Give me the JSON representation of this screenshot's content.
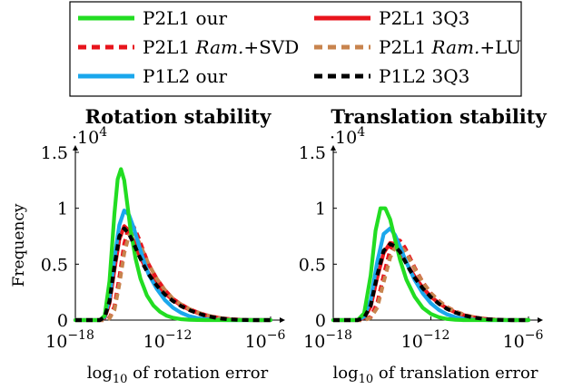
{
  "legend": [
    {
      "name": "P2L1 our",
      "color": "#22dd22",
      "dash": "solid"
    },
    {
      "name": "P2L1 3Q3",
      "color": "#e8141c",
      "dash": "solid"
    },
    {
      "name": "P2L1 Ram.+SVD",
      "color": "#e8141c",
      "dash": "dashed"
    },
    {
      "name": "P2L1 Ram.+LU",
      "color": "#c8844e",
      "dash": "dashed"
    },
    {
      "name": "P1L2 our",
      "color": "#1aa7ec",
      "dash": "solid"
    },
    {
      "name": "P1L2 3Q3",
      "color": "#000000",
      "dash": "dashed"
    }
  ],
  "legend_labels": {
    "l0": "P2L1 our",
    "l1": "P2L1 3Q3",
    "l2_prefix": "P2L1 ",
    "l2_italic": "Ram.",
    "l2_suffix": "+SVD",
    "l3_prefix": "P2L1 ",
    "l3_italic": "Ram.",
    "l3_suffix": "+LU",
    "l4": "P1L2 our",
    "l5": "P1L2 3Q3"
  },
  "chart_data": [
    {
      "type": "line",
      "title": "Rotation stability",
      "xlabel": "log10 of rotation error",
      "xlabel_base": "log",
      "xlabel_sub": "10",
      "xlabel_rest": " of rotation error",
      "ylabel": "Frequency",
      "xlim": [
        -18,
        -6
      ],
      "ylim": [
        0,
        15000
      ],
      "y_multiplier": "·10",
      "y_multiplier_exp": "4",
      "x_ticks": [
        -18,
        -12,
        -6
      ],
      "x_tick_labels": [
        {
          "base": "10",
          "exp": "−18"
        },
        {
          "base": "10",
          "exp": "−12"
        },
        {
          "base": "10",
          "exp": "−6"
        }
      ],
      "y_ticks": [
        0,
        5000,
        10000,
        15000
      ],
      "y_tick_labels": [
        "0",
        "0.5",
        "1",
        "1.5"
      ],
      "series": [
        {
          "name": "P2L1 3Q3",
          "color": "#e8141c",
          "dash": "solid",
          "x": [
            -18.0,
            -16.5,
            -16.2,
            -15.9,
            -15.6,
            -15.3,
            -15.0,
            -14.7,
            -14.4,
            -14.1,
            -13.8,
            -13.5,
            -13.0,
            -12.5,
            -12.0,
            -11.5,
            -11.0,
            -10.5,
            -10.0,
            -9.5,
            -9.0,
            -8.5,
            -8.0,
            -7.5,
            -7.0,
            -6.0
          ],
          "y": [
            0,
            0,
            200,
            1500,
            4500,
            7200,
            8400,
            8000,
            7000,
            5900,
            5000,
            4200,
            3200,
            2400,
            1800,
            1300,
            950,
            650,
            420,
            250,
            140,
            70,
            30,
            10,
            0,
            0
          ]
        },
        {
          "name": "P2L1 Ram.+SVD",
          "color": "#e8141c",
          "dash": "dashed",
          "x": [
            -18.0,
            -16.5,
            -16.2,
            -15.9,
            -15.6,
            -15.3,
            -15.0,
            -14.7,
            -14.4,
            -14.1,
            -13.8,
            -13.5,
            -13.0,
            -12.5,
            -12.0,
            -11.5,
            -11.0,
            -10.5,
            -10.0,
            -9.5,
            -9.0,
            -8.5,
            -8.0,
            -7.5,
            -7.0,
            -6.0
          ],
          "y": [
            0,
            0,
            0,
            200,
            1200,
            3800,
            6800,
            8500,
            8300,
            7300,
            6100,
            5000,
            3700,
            2700,
            1900,
            1400,
            1000,
            700,
            450,
            280,
            160,
            80,
            40,
            15,
            0,
            0
          ]
        },
        {
          "name": "P2L1 Ram.+LU",
          "color": "#c8844e",
          "dash": "dashed",
          "x": [
            -18.0,
            -16.5,
            -16.2,
            -15.9,
            -15.6,
            -15.3,
            -15.0,
            -14.7,
            -14.4,
            -14.1,
            -13.8,
            -13.5,
            -13.0,
            -12.5,
            -12.0,
            -11.5,
            -11.0,
            -10.5,
            -10.0,
            -9.5,
            -9.0,
            -8.5,
            -8.0,
            -7.5,
            -7.0,
            -6.0
          ],
          "y": [
            0,
            0,
            0,
            150,
            900,
            3200,
            6000,
            7600,
            7700,
            7000,
            6000,
            5000,
            3700,
            2700,
            1900,
            1400,
            1000,
            700,
            450,
            280,
            160,
            80,
            40,
            15,
            0,
            0
          ]
        },
        {
          "name": "P1L2 our",
          "color": "#1aa7ec",
          "dash": "solid",
          "x": [
            -18.0,
            -16.5,
            -16.2,
            -15.9,
            -15.6,
            -15.3,
            -15.0,
            -14.7,
            -14.4,
            -14.1,
            -13.8,
            -13.5,
            -13.0,
            -12.5,
            -12.0,
            -11.5,
            -11.0,
            -10.5,
            -10.0,
            -9.5,
            -9.0,
            -8.5,
            -8.0,
            -7.5,
            -7.0,
            -6.0
          ],
          "y": [
            0,
            0,
            300,
            2000,
            5500,
            8500,
            9800,
            9400,
            8200,
            6700,
            5300,
            4100,
            2800,
            1800,
            1100,
            650,
            350,
            180,
            80,
            30,
            10,
            0,
            0,
            0,
            0,
            0
          ]
        },
        {
          "name": "P2L1 our",
          "color": "#22dd22",
          "dash": "solid",
          "x": [
            -18.0,
            -16.5,
            -16.2,
            -15.9,
            -15.6,
            -15.4,
            -15.2,
            -15.0,
            -14.8,
            -14.6,
            -14.3,
            -14.0,
            -13.6,
            -13.2,
            -12.8,
            -12.4,
            -12.0,
            -11.5,
            -11.0,
            -10.5,
            -10.0,
            -9.0,
            -6.0
          ],
          "y": [
            0,
            0,
            400,
            3500,
            9500,
            12600,
            13500,
            12500,
            10300,
            8000,
            5500,
            3700,
            2200,
            1300,
            750,
            400,
            200,
            80,
            30,
            10,
            0,
            0,
            0
          ]
        },
        {
          "name": "P1L2 3Q3",
          "color": "#000000",
          "dash": "dashed",
          "x": [
            -18.0,
            -16.5,
            -16.2,
            -15.9,
            -15.6,
            -15.3,
            -15.0,
            -14.7,
            -14.4,
            -14.1,
            -13.8,
            -13.5,
            -13.0,
            -12.5,
            -12.0,
            -11.5,
            -11.0,
            -10.5,
            -10.0,
            -9.5,
            -9.0,
            -8.5,
            -8.0,
            -7.5,
            -7.0,
            -6.0
          ],
          "y": [
            0,
            0,
            250,
            1700,
            4800,
            7500,
            8200,
            7700,
            6800,
            5800,
            4900,
            4100,
            3100,
            2300,
            1700,
            1250,
            900,
            620,
            400,
            240,
            130,
            65,
            28,
            10,
            0,
            0
          ]
        }
      ]
    },
    {
      "type": "line",
      "title": "Translation stability",
      "xlabel": "log10 of translation error",
      "xlabel_base": "log",
      "xlabel_sub": "10",
      "xlabel_rest": " of translation error",
      "ylabel": "",
      "xlim": [
        -18,
        -6
      ],
      "ylim": [
        0,
        15000
      ],
      "y_multiplier": "·10",
      "y_multiplier_exp": "4",
      "x_ticks": [
        -18,
        -12,
        -6
      ],
      "x_tick_labels": [
        {
          "base": "10",
          "exp": "−18"
        },
        {
          "base": "10",
          "exp": "−12"
        },
        {
          "base": "10",
          "exp": "−6"
        }
      ],
      "y_ticks": [
        0,
        5000,
        10000,
        15000
      ],
      "y_tick_labels": [
        "0",
        "0.5",
        "1",
        "1.5"
      ],
      "series": [
        {
          "name": "P2L1 3Q3",
          "color": "#e8141c",
          "dash": "solid",
          "x": [
            -18.0,
            -16.5,
            -16.1,
            -15.7,
            -15.3,
            -14.9,
            -14.5,
            -14.2,
            -13.9,
            -13.6,
            -13.3,
            -13.0,
            -12.5,
            -12.0,
            -11.5,
            -11.0,
            -10.5,
            -10.0,
            -9.5,
            -9.0,
            -8.5,
            -8.0,
            -7.5,
            -7.0,
            -6.0
          ],
          "y": [
            0,
            0,
            200,
            1200,
            3800,
            6000,
            6900,
            6800,
            6200,
            5400,
            4600,
            3900,
            2900,
            2100,
            1500,
            1050,
            700,
            450,
            280,
            160,
            80,
            35,
            10,
            0,
            0
          ]
        },
        {
          "name": "P2L1 Ram.+SVD",
          "color": "#e8141c",
          "dash": "dashed",
          "x": [
            -18.0,
            -16.5,
            -16.1,
            -15.7,
            -15.3,
            -14.9,
            -14.5,
            -14.2,
            -13.9,
            -13.6,
            -13.3,
            -13.0,
            -12.5,
            -12.0,
            -11.5,
            -11.0,
            -10.5,
            -10.0,
            -9.5,
            -9.0,
            -8.5,
            -8.0,
            -7.5,
            -7.0,
            -6.0
          ],
          "y": [
            0,
            0,
            0,
            300,
            1500,
            4000,
            6300,
            7200,
            7100,
            6500,
            5600,
            4700,
            3400,
            2400,
            1700,
            1150,
            780,
            500,
            300,
            170,
            90,
            40,
            12,
            0,
            0
          ]
        },
        {
          "name": "P2L1 Ram.+LU",
          "color": "#c8844e",
          "dash": "dashed",
          "x": [
            -18.0,
            -16.5,
            -16.1,
            -15.7,
            -15.3,
            -14.9,
            -14.5,
            -14.2,
            -13.9,
            -13.6,
            -13.3,
            -13.0,
            -12.5,
            -12.0,
            -11.5,
            -11.0,
            -10.5,
            -10.0,
            -9.5,
            -9.0,
            -8.5,
            -8.0,
            -7.5,
            -7.0,
            -6.0
          ],
          "y": [
            0,
            0,
            0,
            200,
            1100,
            3400,
            5600,
            6500,
            6600,
            6200,
            5400,
            4600,
            3400,
            2400,
            1700,
            1150,
            780,
            500,
            300,
            170,
            90,
            40,
            12,
            0,
            0
          ]
        },
        {
          "name": "P1L2 our",
          "color": "#1aa7ec",
          "dash": "solid",
          "x": [
            -18.0,
            -16.5,
            -16.1,
            -15.7,
            -15.3,
            -14.9,
            -14.5,
            -14.2,
            -13.9,
            -13.6,
            -13.3,
            -13.0,
            -12.5,
            -12.0,
            -11.5,
            -11.0,
            -10.5,
            -10.0,
            -9.5,
            -9.0,
            -8.5,
            -8.0,
            -7.0,
            -6.0
          ],
          "y": [
            0,
            0,
            300,
            1800,
            5200,
            7700,
            8200,
            7600,
            6600,
            5500,
            4500,
            3600,
            2400,
            1500,
            900,
            500,
            260,
            120,
            50,
            15,
            0,
            0,
            0,
            0
          ]
        },
        {
          "name": "P2L1 our",
          "color": "#22dd22",
          "dash": "solid",
          "x": [
            -18.0,
            -16.5,
            -16.1,
            -15.7,
            -15.4,
            -15.1,
            -14.8,
            -14.5,
            -14.2,
            -13.9,
            -13.5,
            -13.0,
            -12.5,
            -12.0,
            -11.5,
            -11.0,
            -10.5,
            -10.0,
            -9.0,
            -6.0
          ],
          "y": [
            0,
            0,
            600,
            4000,
            8000,
            10000,
            10000,
            9000,
            7200,
            5400,
            3600,
            2100,
            1100,
            550,
            250,
            100,
            30,
            0,
            0,
            0
          ]
        },
        {
          "name": "P1L2 3Q3",
          "color": "#000000",
          "dash": "dashed",
          "x": [
            -18.0,
            -16.5,
            -16.1,
            -15.7,
            -15.3,
            -14.9,
            -14.5,
            -14.2,
            -13.9,
            -13.6,
            -13.3,
            -13.0,
            -12.5,
            -12.0,
            -11.5,
            -11.0,
            -10.5,
            -10.0,
            -9.5,
            -9.0,
            -8.5,
            -8.0,
            -7.5,
            -7.0,
            -6.0
          ],
          "y": [
            0,
            0,
            200,
            1300,
            4000,
            6200,
            6800,
            6600,
            6100,
            5300,
            4500,
            3800,
            2850,
            2050,
            1450,
            1000,
            680,
            430,
            260,
            150,
            75,
            30,
            10,
            0,
            0
          ]
        }
      ]
    }
  ]
}
